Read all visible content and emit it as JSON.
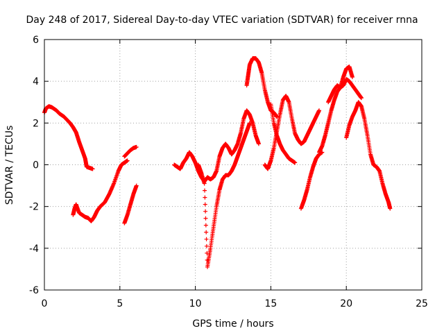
{
  "chart_data": {
    "type": "scatter",
    "title": "Day 248 of 2017, Sidereal Day-to-day VTEC variation (SDTVAR) for receiver rnna",
    "xlabel": "GPS time / hours",
    "ylabel": "SDTVAR / TECUs",
    "xlim": [
      0,
      25
    ],
    "ylim": [
      -6,
      6
    ],
    "xticks": [
      0,
      5,
      10,
      15,
      20,
      25
    ],
    "yticks": [
      -6,
      -4,
      -2,
      0,
      2,
      4,
      6
    ],
    "grid": true,
    "marker": "+",
    "color": "#ff0000",
    "series": [
      {
        "name": "seg1",
        "x": [
          0.0,
          0.1,
          0.3,
          0.5,
          0.8,
          1.0,
          1.3,
          1.5,
          1.7,
          1.9,
          2.1,
          2.3,
          2.5,
          2.7,
          2.8,
          3.0,
          3.2
        ],
        "y": [
          2.5,
          2.7,
          2.8,
          2.75,
          2.6,
          2.45,
          2.3,
          2.15,
          2.0,
          1.8,
          1.55,
          1.1,
          0.7,
          0.3,
          -0.1,
          -0.15,
          -0.2
        ]
      },
      {
        "name": "seg2",
        "x": [
          1.9,
          2.0,
          2.1,
          2.3,
          2.5,
          2.7,
          2.9,
          3.1,
          3.3,
          3.5,
          3.7,
          4.0,
          4.3,
          4.6,
          4.9,
          5.1,
          5.3,
          5.5
        ],
        "y": [
          -2.4,
          -2.1,
          -1.9,
          -2.3,
          -2.4,
          -2.5,
          -2.55,
          -2.7,
          -2.5,
          -2.2,
          -2.0,
          -1.8,
          -1.4,
          -0.9,
          -0.3,
          0.0,
          0.1,
          0.2
        ]
      },
      {
        "name": "seg3",
        "x": [
          5.3,
          5.5,
          5.7,
          5.9,
          6.1
        ],
        "y": [
          0.4,
          0.55,
          0.7,
          0.8,
          0.85
        ]
      },
      {
        "name": "seg4",
        "x": [
          5.3,
          5.5,
          5.7,
          5.9,
          6.1
        ],
        "y": [
          -2.8,
          -2.4,
          -1.9,
          -1.4,
          -1.0
        ]
      },
      {
        "name": "seg5",
        "x": [
          8.6,
          8.8,
          9.0,
          9.2,
          9.4,
          9.6,
          9.8,
          10.0,
          10.2,
          10.4,
          10.6,
          10.8,
          11.0,
          11.2,
          11.4,
          11.6,
          11.8,
          12.0,
          12.2,
          12.4,
          12.6,
          12.8,
          13.0,
          13.2,
          13.4,
          13.6,
          13.8,
          14.0,
          14.2
        ],
        "y": [
          0.0,
          -0.1,
          -0.2,
          0.1,
          0.3,
          0.6,
          0.4,
          0.1,
          -0.3,
          -0.6,
          -0.8,
          -0.6,
          -0.7,
          -0.6,
          -0.3,
          0.4,
          0.8,
          1.0,
          0.8,
          0.5,
          0.7,
          1.0,
          1.5,
          2.2,
          2.6,
          2.4,
          2.0,
          1.4,
          1.0
        ]
      },
      {
        "name": "seg6",
        "x": [
          10.2,
          10.4,
          10.6,
          10.8,
          11.0,
          11.2,
          11.4,
          11.6,
          11.8,
          12.0,
          12.2
        ],
        "y": [
          0.0,
          -0.4,
          -0.9,
          -4.9,
          -4.0,
          -3.0,
          -2.0,
          -1.2,
          -0.7,
          -0.5,
          -0.5
        ]
      },
      {
        "name": "seg7",
        "x": [
          12.2,
          12.4,
          12.6,
          12.8,
          13.0,
          13.2,
          13.4,
          13.6
        ],
        "y": [
          -0.5,
          -0.3,
          0.0,
          0.4,
          0.8,
          1.2,
          1.6,
          2.0
        ]
      },
      {
        "name": "seg8",
        "x": [
          13.4,
          13.5,
          13.6,
          13.8,
          14.0,
          14.2,
          14.4,
          14.6,
          14.8,
          15.0,
          15.2,
          15.4
        ],
        "y": [
          3.8,
          4.3,
          4.8,
          5.1,
          5.1,
          4.9,
          4.4,
          3.6,
          3.0,
          2.6,
          2.5,
          2.3
        ]
      },
      {
        "name": "seg9",
        "x": [
          14.6,
          14.8,
          15.0,
          15.2,
          15.4,
          15.6,
          15.8,
          16.0,
          16.2,
          16.4,
          16.6,
          16.8,
          17.0,
          17.2,
          17.4,
          17.6,
          17.8,
          18.0,
          18.2
        ],
        "y": [
          0.0,
          -0.2,
          0.2,
          0.8,
          1.6,
          2.4,
          3.1,
          3.3,
          3.0,
          2.2,
          1.5,
          1.2,
          1.0,
          1.1,
          1.4,
          1.7,
          2.0,
          2.3,
          2.6
        ]
      },
      {
        "name": "seg10",
        "x": [
          15.0,
          15.2,
          15.4,
          15.6,
          15.8,
          16.0,
          16.2,
          16.4,
          16.6
        ],
        "y": [
          2.9,
          2.0,
          1.4,
          1.0,
          0.7,
          0.5,
          0.3,
          0.2,
          0.1
        ]
      },
      {
        "name": "seg11",
        "x": [
          17.0,
          17.2,
          17.4,
          17.6,
          17.8,
          18.0,
          18.2,
          18.4
        ],
        "y": [
          -2.1,
          -1.7,
          -1.2,
          -0.6,
          -0.1,
          0.3,
          0.5,
          0.6
        ]
      },
      {
        "name": "seg12",
        "x": [
          18.2,
          18.4,
          18.6,
          18.8,
          19.0,
          19.2,
          19.4,
          19.6,
          19.8,
          20.0,
          20.2,
          20.4,
          20.6,
          20.8,
          21.0
        ],
        "y": [
          0.6,
          0.9,
          1.4,
          2.0,
          2.6,
          3.1,
          3.5,
          3.7,
          3.8,
          4.1,
          4.0,
          3.8,
          3.6,
          3.4,
          3.2
        ]
      },
      {
        "name": "seg13",
        "x": [
          18.8,
          19.0,
          19.2,
          19.4,
          19.6,
          19.8,
          20.0,
          20.2,
          20.4
        ],
        "y": [
          3.0,
          3.3,
          3.6,
          3.8,
          3.7,
          4.2,
          4.6,
          4.7,
          4.2
        ]
      },
      {
        "name": "seg14",
        "x": [
          20.0,
          20.2,
          20.4,
          20.6,
          20.8,
          21.0,
          21.2,
          21.4,
          21.6,
          21.8,
          22.0,
          22.2,
          22.4,
          22.6,
          22.8,
          22.9
        ],
        "y": [
          1.3,
          1.9,
          2.3,
          2.6,
          3.0,
          2.8,
          2.2,
          1.4,
          0.5,
          0.0,
          -0.1,
          -0.3,
          -0.9,
          -1.4,
          -1.8,
          -2.1
        ]
      }
    ]
  }
}
